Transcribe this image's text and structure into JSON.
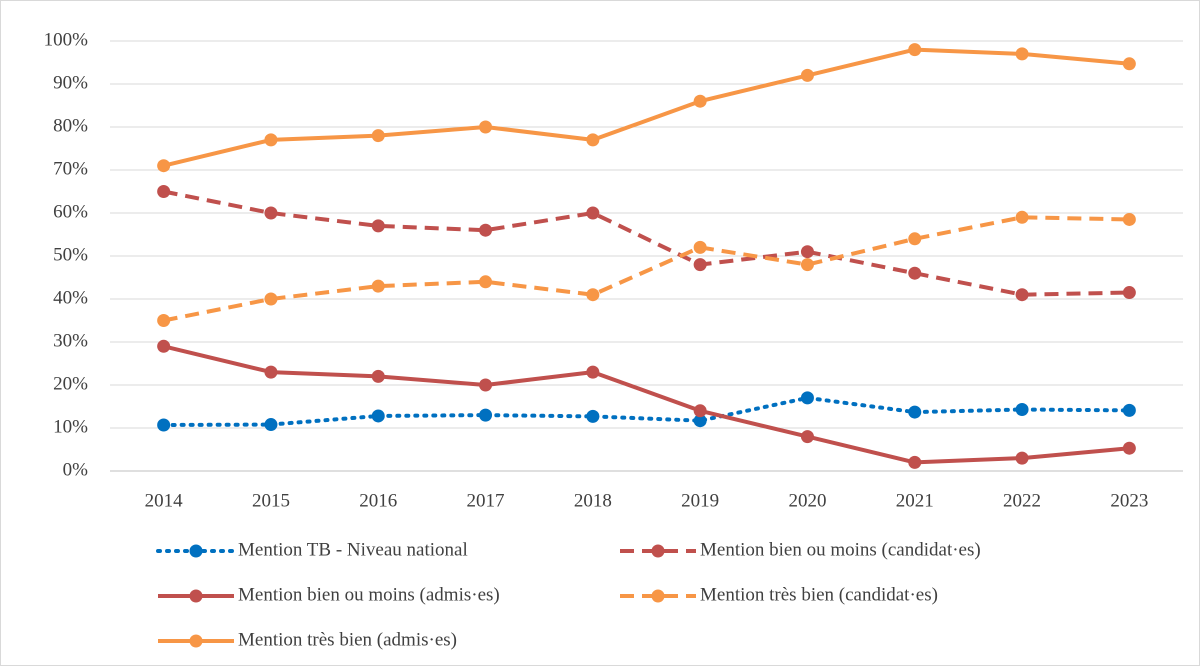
{
  "chart_data": {
    "type": "line",
    "categories": [
      "2014",
      "2015",
      "2016",
      "2017",
      "2018",
      "2019",
      "2020",
      "2021",
      "2022",
      "2023"
    ],
    "series": [
      {
        "name": "Mention TB - Niveau national",
        "color": "#0070c0",
        "dash": "dotted",
        "values": [
          10.7,
          10.8,
          12.8,
          13,
          12.7,
          11.7,
          17,
          13.7,
          14.3,
          14.1
        ]
      },
      {
        "name": "Mention bien ou moins (candidat·es)",
        "color": "#c0504d",
        "dash": "dashed",
        "values": [
          65,
          60,
          57,
          56,
          60,
          48,
          51,
          46,
          41,
          41.5
        ]
      },
      {
        "name": "Mention bien ou moins (admis·es)",
        "color": "#c0504d",
        "dash": "solid",
        "values": [
          29,
          23,
          22,
          20,
          23,
          14,
          8,
          2,
          3,
          5.3
        ]
      },
      {
        "name": "Mention très bien (candidat·es)",
        "color": "#f79646",
        "dash": "dashed",
        "values": [
          35,
          40,
          43,
          44,
          41,
          52,
          48,
          54,
          59,
          58.5
        ]
      },
      {
        "name": "Mention très bien (admis·es)",
        "color": "#f79646",
        "dash": "solid",
        "values": [
          71,
          77,
          78,
          80,
          77,
          86,
          92,
          98,
          97,
          94.7
        ]
      }
    ],
    "ylim": [
      0,
      100
    ],
    "yticks": [
      {
        "value": 0,
        "label": "0%"
      },
      {
        "value": 10,
        "label": "10%"
      },
      {
        "value": 20,
        "label": "20%"
      },
      {
        "value": 30,
        "label": "30%"
      },
      {
        "value": 40,
        "label": "40%"
      },
      {
        "value": 50,
        "label": "50%"
      },
      {
        "value": 60,
        "label": "60%"
      },
      {
        "value": 70,
        "label": "70%"
      },
      {
        "value": 80,
        "label": "80%"
      },
      {
        "value": 90,
        "label": "90%"
      },
      {
        "value": 100,
        "label": "100%"
      }
    ],
    "grid": true
  }
}
